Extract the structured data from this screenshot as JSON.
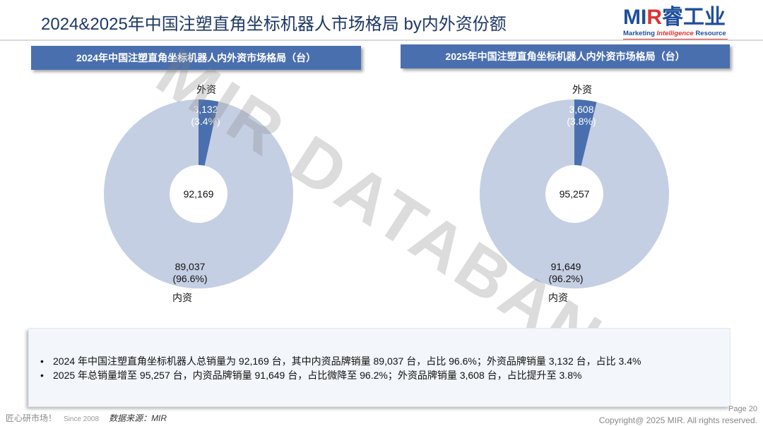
{
  "title": "2024&2025年中国注塑直角坐标机器人市场格局 by内外资份额",
  "logo": {
    "brand_mi": "MI",
    "brand_r": "R",
    "brand_cn": "睿工业",
    "tagline_1": "Marketing ",
    "tagline_2": "Intelligence",
    "tagline_3": " Resource"
  },
  "watermark": "MIR DATABANK",
  "colors": {
    "domestic": "#c5cfe3",
    "foreign": "#4a6fae",
    "header": "#4a6fae",
    "center": "#ffffff"
  },
  "chart_data": [
    {
      "type": "pie",
      "title": "2024年中国注塑直角坐标机器人内外资市场格局（台）",
      "center_total": "92,169",
      "slices": [
        {
          "name": "外资",
          "value": 3132,
          "value_label": "3,132",
          "pct_label": "(3.4%)"
        },
        {
          "name": "内资",
          "value": 89037,
          "value_label": "89,037",
          "pct_label": "(96.6%)"
        }
      ]
    },
    {
      "type": "pie",
      "title": "2025年中国注塑直角坐标机器人内外资市场格局（台）",
      "center_total": "95,257",
      "slices": [
        {
          "name": "外资",
          "value": 3608,
          "value_label": "3,608",
          "pct_label": "(3.8%)"
        },
        {
          "name": "内资",
          "value": 91649,
          "value_label": "91,649",
          "pct_label": "(96.2%)"
        }
      ]
    }
  ],
  "notes": [
    "2024 年中国注塑直角坐标机器人总销量为 92,169 台，其中内资品牌销量 89,037 台，占比 96.6%；外资品牌销量 3,132 台，占比 3.4%",
    "2025 年总销量增至 95,257 台，内资品牌销量 91,649 台，占比微降至 96.2%；外资品牌销量 3,608 台，占比提升至 3.8%"
  ],
  "footer": {
    "slogan": "匠心研市场！",
    "since": "Since 2008",
    "source": "数据来源：MIR",
    "page": "Page 20",
    "copyright": "Copyright@ 2025 MIR. All rights reserved."
  }
}
